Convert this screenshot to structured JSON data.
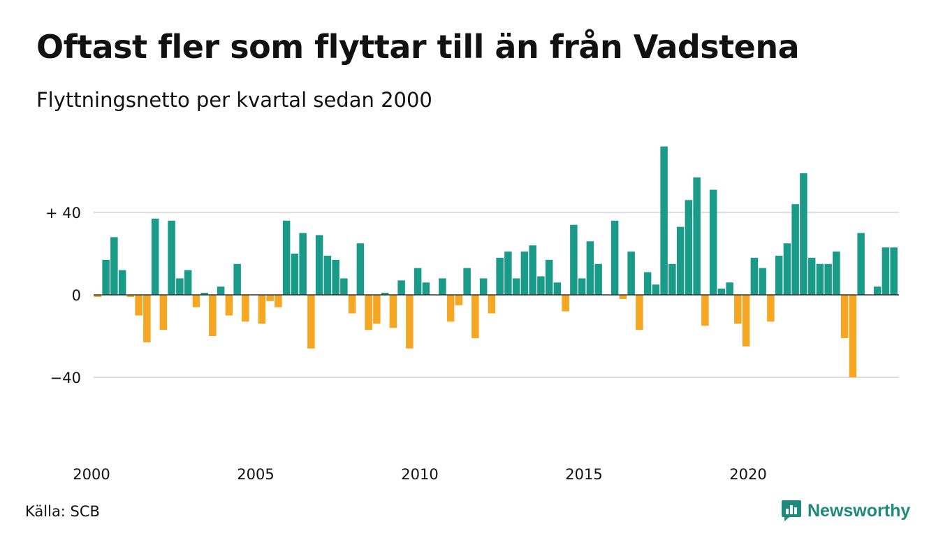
{
  "header": {
    "title": "Oftast fler som flyttar till än från Vadstena",
    "subtitle": "Flyttningsnetto per kvartal sedan 2000"
  },
  "footer": {
    "source": "Källa: SCB",
    "brand": "Newsworthy"
  },
  "colors": {
    "positive": "#1a9a88",
    "negative": "#f5a623",
    "grid": "#dddddd",
    "baseline": "#333333",
    "brand": "#1e8a7e"
  },
  "chart_data": {
    "type": "bar",
    "title": "Oftast fler som flyttar till än från Vadstena",
    "subtitle": "Flyttningsnetto per kvartal sedan 2000",
    "xlabel": "",
    "ylabel": "",
    "ylim": [
      -70,
      75
    ],
    "grid": true,
    "y_ticks": [
      {
        "value": 40,
        "label": "+ 40"
      },
      {
        "value": 0,
        "label": "0"
      },
      {
        "value": -40,
        "label": "−40"
      }
    ],
    "x_ticks": [
      {
        "year": 2000,
        "label": "2000"
      },
      {
        "year": 2005,
        "label": "2005"
      },
      {
        "year": 2010,
        "label": "2010"
      },
      {
        "year": 2015,
        "label": "2015"
      },
      {
        "year": 2020,
        "label": "2020"
      }
    ],
    "start_year": 2000,
    "values": [
      -1,
      17,
      28,
      12,
      -1,
      -10,
      -23,
      37,
      -17,
      36,
      8,
      12,
      -6,
      1,
      -20,
      4,
      -10,
      15,
      -13,
      0,
      -14,
      -3,
      -6,
      36,
      20,
      30,
      -26,
      29,
      19,
      17,
      8,
      -9,
      25,
      -17,
      -14,
      1,
      -16,
      7,
      -26,
      13,
      6,
      0,
      8,
      -13,
      -5,
      13,
      -21,
      8,
      -9,
      18,
      21,
      8,
      21,
      24,
      9,
      17,
      6,
      -8,
      34,
      8,
      26,
      15,
      0,
      36,
      -2,
      21,
      -17,
      11,
      5,
      72,
      15,
      33,
      46,
      57,
      -15,
      51,
      3,
      6,
      -14,
      -25,
      18,
      13,
      -13,
      19,
      25,
      44,
      59,
      18,
      15,
      15,
      21,
      -21,
      -40,
      30,
      0,
      4,
      23,
      23
    ]
  }
}
